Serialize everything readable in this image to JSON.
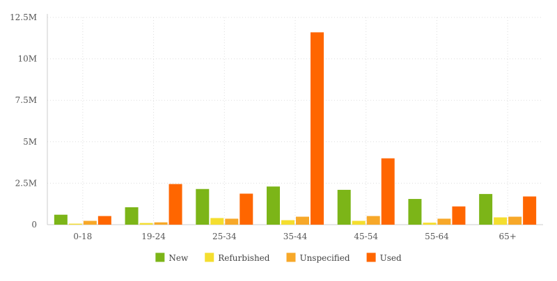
{
  "chart_data": {
    "type": "bar",
    "title": "",
    "xlabel": "",
    "ylabel": "",
    "categories": [
      "0-18",
      "19-24",
      "25-34",
      "35-44",
      "45-54",
      "55-64",
      "65+"
    ],
    "ylim": [
      0,
      12500000
    ],
    "yticks": [
      {
        "value": 0,
        "label": "0"
      },
      {
        "value": 2500000,
        "label": "2.5M"
      },
      {
        "value": 5000000,
        "label": "5M"
      },
      {
        "value": 7500000,
        "label": "7.5M"
      },
      {
        "value": 10000000,
        "label": "10M"
      },
      {
        "value": 12500000,
        "label": "12.5M"
      }
    ],
    "grid": true,
    "legend_position": "bottom",
    "series": [
      {
        "name": "New",
        "color": "#7cb518",
        "values": [
          600000,
          1050000,
          2150000,
          2300000,
          2100000,
          1550000,
          1850000
        ]
      },
      {
        "name": "Refurbished",
        "color": "#f4de2f",
        "values": [
          60000,
          100000,
          400000,
          270000,
          230000,
          120000,
          440000
        ]
      },
      {
        "name": "Unspecified",
        "color": "#f7a829",
        "values": [
          230000,
          140000,
          360000,
          480000,
          520000,
          360000,
          480000
        ]
      },
      {
        "name": "Used",
        "color": "#ff6600",
        "values": [
          520000,
          2450000,
          1870000,
          11600000,
          4000000,
          1100000,
          1700000
        ]
      }
    ]
  }
}
